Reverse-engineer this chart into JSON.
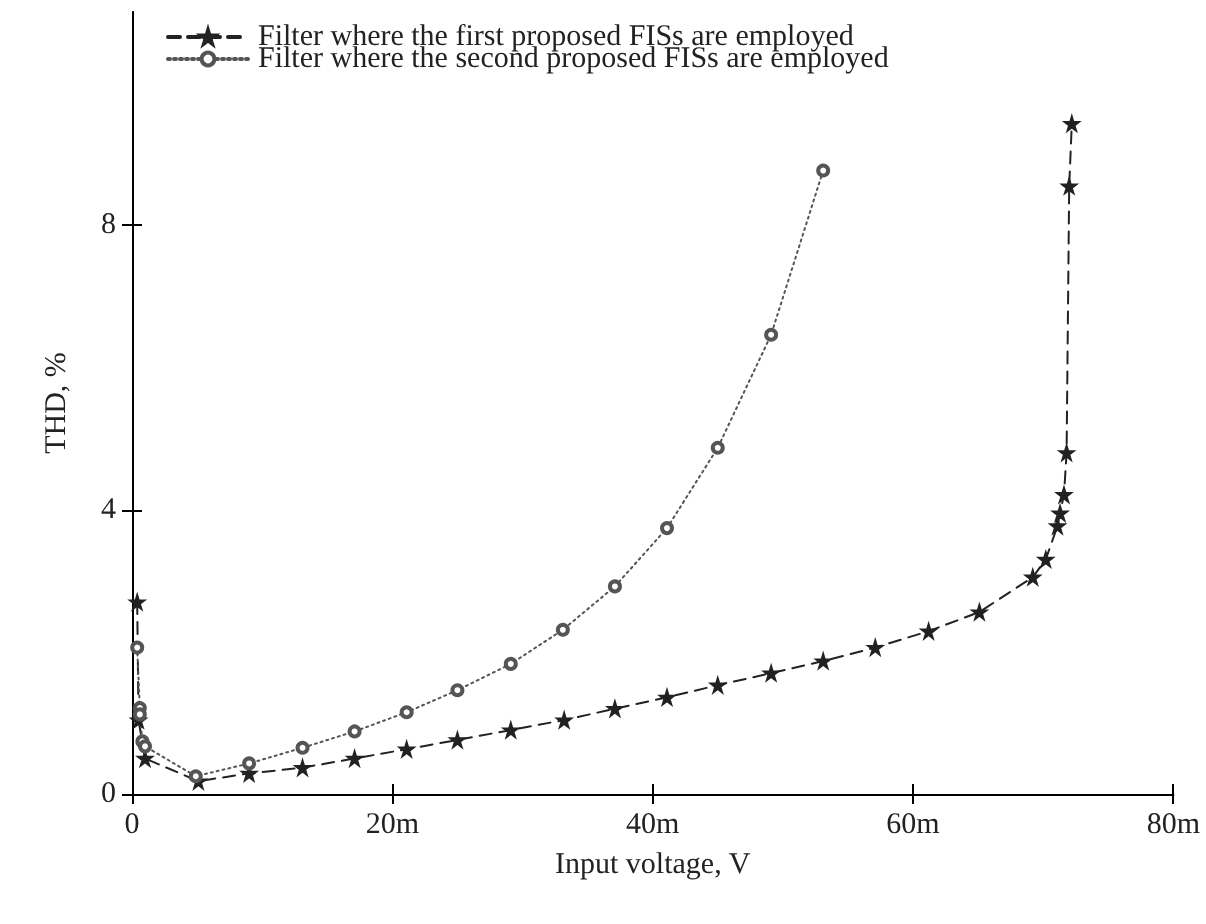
{
  "chart_data": {
    "type": "line",
    "xlabel": "Input voltage, V",
    "ylabel": "THD, %",
    "xlim": [
      0,
      80
    ],
    "ylim": [
      0,
      11
    ],
    "xticks": [
      0,
      {
        "value": 20,
        "label": "20m"
      },
      {
        "value": 40,
        "label": "40m"
      },
      {
        "value": 60,
        "label": "60m"
      },
      {
        "value": 80,
        "label": "80m"
      }
    ],
    "yticks": [
      0,
      4,
      8
    ],
    "grid": false,
    "legend": "top left",
    "series": [
      {
        "name": "Filter where the first proposed FISs are employed",
        "color": "#222222",
        "marker": "star",
        "line_style": "dashed",
        "x": [
          0.4,
          0.5,
          1.0,
          5.1,
          9.0,
          13.1,
          17.1,
          21.1,
          25.0,
          29.1,
          33.2,
          37.1,
          41.1,
          45.0,
          49.1,
          53.1,
          57.1,
          61.2,
          65.1,
          69.2,
          70.2,
          71.1,
          71.3,
          71.6,
          71.8,
          72.0,
          72.2
        ],
        "values": [
          2.7,
          1.04,
          0.5,
          0.18,
          0.29,
          0.37,
          0.5,
          0.63,
          0.76,
          0.9,
          1.04,
          1.2,
          1.36,
          1.53,
          1.7,
          1.87,
          2.06,
          2.29,
          2.56,
          3.05,
          3.3,
          3.77,
          3.95,
          4.21,
          4.8,
          8.55,
          9.43
        ]
      },
      {
        "name": "Filter where the second proposed FISs are employed",
        "color": "#555555",
        "marker": "circle",
        "line_style": "dotted",
        "x": [
          0.4,
          0.6,
          0.6,
          0.8,
          1.0,
          4.9,
          9.0,
          13.1,
          17.1,
          21.1,
          25.0,
          29.1,
          33.1,
          37.1,
          41.1,
          45.0,
          49.1,
          53.1
        ],
        "values": [
          2.06,
          1.21,
          1.12,
          0.74,
          0.67,
          0.25,
          0.43,
          0.65,
          0.88,
          1.15,
          1.46,
          1.83,
          2.31,
          2.92,
          3.74,
          4.87,
          6.46,
          8.77
        ]
      }
    ]
  }
}
